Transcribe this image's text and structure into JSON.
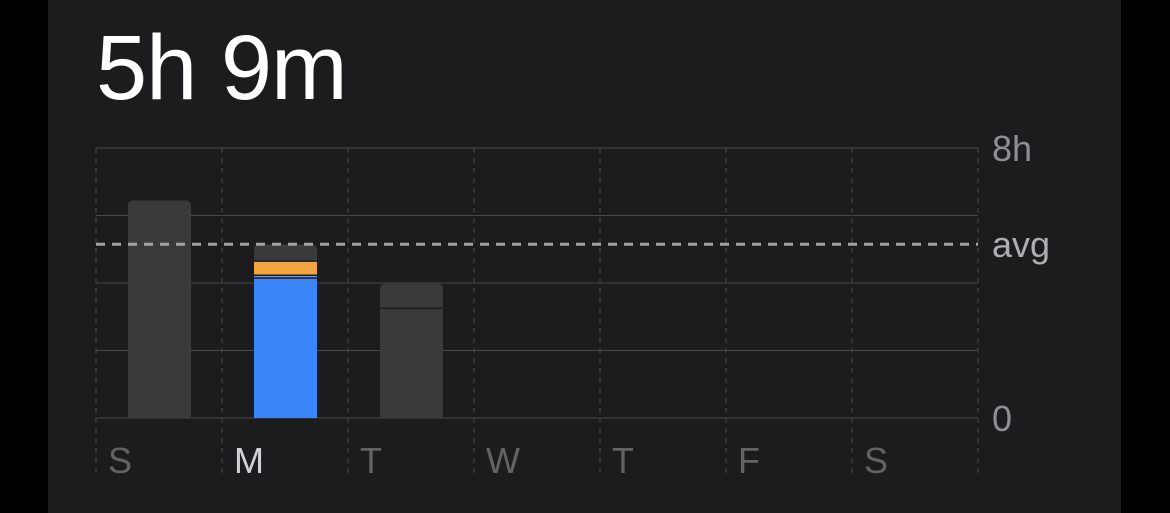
{
  "summary": {
    "total": "5h 9m"
  },
  "colors": {
    "background": "#000000",
    "card": "#1c1c1e",
    "bar_default": "#3a3a3c",
    "bar_segment_divider": "#1c1c1e",
    "category_blue": "#3a85f7",
    "category_orange": "#f2a541",
    "category_gray": "#3a3a3c",
    "gridline": "#48484a",
    "avg_line": "#a1a1a6"
  },
  "chart_data": {
    "type": "bar",
    "stacked": true,
    "categories": [
      "S",
      "M",
      "T",
      "W",
      "T",
      "F",
      "S"
    ],
    "highlighted_index": 1,
    "y_unit": "hours",
    "ylim": [
      0,
      8
    ],
    "y_ticks": [
      {
        "value": 8,
        "label": "8h"
      },
      {
        "value": 0,
        "label": "0"
      }
    ],
    "gridlines_hours": [
      0,
      2,
      4,
      6,
      8
    ],
    "average": {
      "value": 5.15,
      "label": "avg"
    },
    "bars": [
      {
        "day": "S",
        "total": 6.45,
        "segments": [
          {
            "color": "#3a3a3c",
            "value": 6.45
          }
        ]
      },
      {
        "day": "M",
        "total": 5.15,
        "segments": [
          {
            "color": "#3a85f7",
            "value": 4.15
          },
          {
            "color": "#5b9cf8",
            "value": 0.08
          },
          {
            "color": "#f2a541",
            "value": 0.42
          },
          {
            "color": "#3a3a3c",
            "value": 0.5
          }
        ]
      },
      {
        "day": "T",
        "total": 3.98,
        "segments": [
          {
            "color": "#3a3a3c",
            "value": 3.25
          },
          {
            "color": "#3a3a3c",
            "value": 0.73
          }
        ]
      },
      {
        "day": "W",
        "total": 0,
        "segments": []
      },
      {
        "day": "T",
        "total": 0,
        "segments": []
      },
      {
        "day": "F",
        "total": 0,
        "segments": []
      },
      {
        "day": "S",
        "total": 0,
        "segments": []
      }
    ]
  }
}
